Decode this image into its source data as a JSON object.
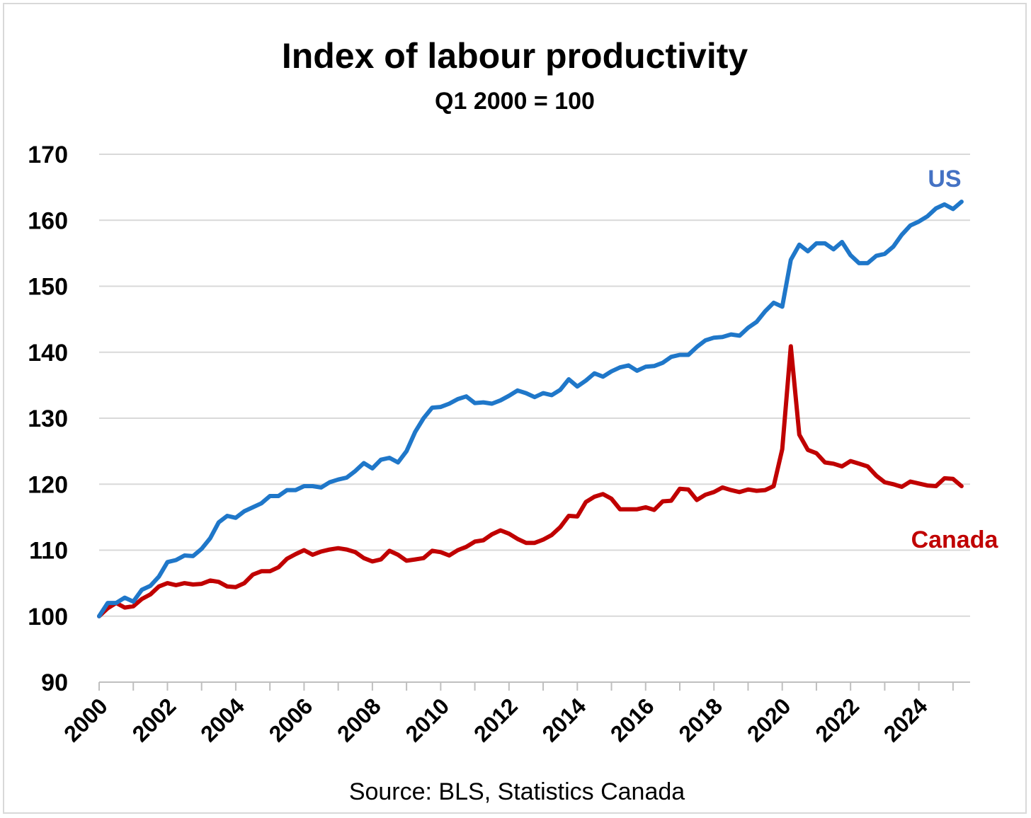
{
  "chart_data": {
    "type": "line",
    "title": "Index of labour productivity",
    "subtitle": "Q1 2000 = 100",
    "source": "Source: BLS, Statistics Canada",
    "xlabel": "",
    "ylabel": "",
    "ylim": [
      90,
      170
    ],
    "yticks": [
      90,
      100,
      110,
      120,
      130,
      140,
      150,
      160,
      170
    ],
    "xlim": [
      2000,
      2025.5
    ],
    "xticks": [
      "2000",
      "2002",
      "2004",
      "2006",
      "2008",
      "2010",
      "2012",
      "2014",
      "2016",
      "2018",
      "2020",
      "2022",
      "2024"
    ],
    "grid": true,
    "legend": "inline labels at right",
    "series": [
      {
        "name": "US",
        "color": "#1f77c9",
        "label_color": "#4472c4",
        "points": [
          [
            2000.0,
            100.0
          ],
          [
            2000.25,
            102.0
          ],
          [
            2000.5,
            102.0
          ],
          [
            2000.75,
            102.8
          ],
          [
            2001.0,
            102.2
          ],
          [
            2001.25,
            104.0
          ],
          [
            2001.5,
            104.6
          ],
          [
            2001.75,
            106.0
          ],
          [
            2002.0,
            108.2
          ],
          [
            2002.25,
            108.5
          ],
          [
            2002.5,
            109.2
          ],
          [
            2002.75,
            109.1
          ],
          [
            2003.0,
            110.2
          ],
          [
            2003.25,
            111.8
          ],
          [
            2003.5,
            114.2
          ],
          [
            2003.75,
            115.2
          ],
          [
            2004.0,
            114.9
          ],
          [
            2004.25,
            115.9
          ],
          [
            2004.5,
            116.5
          ],
          [
            2004.75,
            117.1
          ],
          [
            2005.0,
            118.2
          ],
          [
            2005.25,
            118.2
          ],
          [
            2005.5,
            119.1
          ],
          [
            2005.75,
            119.1
          ],
          [
            2006.0,
            119.7
          ],
          [
            2006.25,
            119.7
          ],
          [
            2006.5,
            119.5
          ],
          [
            2006.75,
            120.3
          ],
          [
            2007.0,
            120.7
          ],
          [
            2007.25,
            121.0
          ],
          [
            2007.5,
            122.0
          ],
          [
            2007.75,
            123.2
          ],
          [
            2008.0,
            122.4
          ],
          [
            2008.25,
            123.7
          ],
          [
            2008.5,
            124.0
          ],
          [
            2008.75,
            123.3
          ],
          [
            2009.0,
            125.0
          ],
          [
            2009.25,
            127.9
          ],
          [
            2009.5,
            130.0
          ],
          [
            2009.75,
            131.6
          ],
          [
            2010.0,
            131.7
          ],
          [
            2010.25,
            132.2
          ],
          [
            2010.5,
            132.9
          ],
          [
            2010.75,
            133.3
          ],
          [
            2011.0,
            132.3
          ],
          [
            2011.25,
            132.4
          ],
          [
            2011.5,
            132.2
          ],
          [
            2011.75,
            132.7
          ],
          [
            2012.0,
            133.4
          ],
          [
            2012.25,
            134.2
          ],
          [
            2012.5,
            133.8
          ],
          [
            2012.75,
            133.2
          ],
          [
            2013.0,
            133.8
          ],
          [
            2013.25,
            133.5
          ],
          [
            2013.5,
            134.3
          ],
          [
            2013.75,
            135.9
          ],
          [
            2014.0,
            134.8
          ],
          [
            2014.25,
            135.7
          ],
          [
            2014.5,
            136.8
          ],
          [
            2014.75,
            136.3
          ],
          [
            2015.0,
            137.1
          ],
          [
            2015.25,
            137.7
          ],
          [
            2015.5,
            138.0
          ],
          [
            2015.75,
            137.2
          ],
          [
            2016.0,
            137.8
          ],
          [
            2016.25,
            137.9
          ],
          [
            2016.5,
            138.4
          ],
          [
            2016.75,
            139.3
          ],
          [
            2017.0,
            139.6
          ],
          [
            2017.25,
            139.6
          ],
          [
            2017.5,
            140.8
          ],
          [
            2017.75,
            141.8
          ],
          [
            2018.0,
            142.2
          ],
          [
            2018.25,
            142.3
          ],
          [
            2018.5,
            142.7
          ],
          [
            2018.75,
            142.5
          ],
          [
            2019.0,
            143.7
          ],
          [
            2019.25,
            144.6
          ],
          [
            2019.5,
            146.2
          ],
          [
            2019.75,
            147.5
          ],
          [
            2020.0,
            146.9
          ],
          [
            2020.25,
            154.0
          ],
          [
            2020.5,
            156.3
          ],
          [
            2020.75,
            155.3
          ],
          [
            2021.0,
            156.5
          ],
          [
            2021.25,
            156.5
          ],
          [
            2021.5,
            155.6
          ],
          [
            2021.75,
            156.7
          ],
          [
            2022.0,
            154.7
          ],
          [
            2022.25,
            153.5
          ],
          [
            2022.5,
            153.5
          ],
          [
            2022.75,
            154.6
          ],
          [
            2023.0,
            154.9
          ],
          [
            2023.25,
            156.0
          ],
          [
            2023.5,
            157.8
          ],
          [
            2023.75,
            159.2
          ],
          [
            2024.0,
            159.8
          ],
          [
            2024.25,
            160.6
          ],
          [
            2024.5,
            161.8
          ],
          [
            2024.75,
            162.4
          ],
          [
            2025.0,
            161.7
          ],
          [
            2025.25,
            162.8
          ]
        ]
      },
      {
        "name": "Canada",
        "color": "#c00000",
        "label_color": "#c00000",
        "points": [
          [
            2000.0,
            100.0
          ],
          [
            2000.25,
            101.2
          ],
          [
            2000.5,
            102.0
          ],
          [
            2000.75,
            101.3
          ],
          [
            2001.0,
            101.5
          ],
          [
            2001.25,
            102.6
          ],
          [
            2001.5,
            103.3
          ],
          [
            2001.75,
            104.5
          ],
          [
            2002.0,
            105.0
          ],
          [
            2002.25,
            104.7
          ],
          [
            2002.5,
            105.0
          ],
          [
            2002.75,
            104.8
          ],
          [
            2003.0,
            104.9
          ],
          [
            2003.25,
            105.4
          ],
          [
            2003.5,
            105.2
          ],
          [
            2003.75,
            104.5
          ],
          [
            2004.0,
            104.4
          ],
          [
            2004.25,
            105.0
          ],
          [
            2004.5,
            106.3
          ],
          [
            2004.75,
            106.8
          ],
          [
            2005.0,
            106.8
          ],
          [
            2005.25,
            107.4
          ],
          [
            2005.5,
            108.7
          ],
          [
            2005.75,
            109.4
          ],
          [
            2006.0,
            110.0
          ],
          [
            2006.25,
            109.3
          ],
          [
            2006.5,
            109.8
          ],
          [
            2006.75,
            110.1
          ],
          [
            2007.0,
            110.3
          ],
          [
            2007.25,
            110.1
          ],
          [
            2007.5,
            109.7
          ],
          [
            2007.75,
            108.8
          ],
          [
            2008.0,
            108.3
          ],
          [
            2008.25,
            108.6
          ],
          [
            2008.5,
            109.9
          ],
          [
            2008.75,
            109.3
          ],
          [
            2009.0,
            108.4
          ],
          [
            2009.25,
            108.6
          ],
          [
            2009.5,
            108.8
          ],
          [
            2009.75,
            109.9
          ],
          [
            2010.0,
            109.7
          ],
          [
            2010.25,
            109.2
          ],
          [
            2010.5,
            110.0
          ],
          [
            2010.75,
            110.5
          ],
          [
            2011.0,
            111.3
          ],
          [
            2011.25,
            111.5
          ],
          [
            2011.5,
            112.4
          ],
          [
            2011.75,
            113.0
          ],
          [
            2012.0,
            112.5
          ],
          [
            2012.25,
            111.7
          ],
          [
            2012.5,
            111.1
          ],
          [
            2012.75,
            111.1
          ],
          [
            2013.0,
            111.6
          ],
          [
            2013.25,
            112.3
          ],
          [
            2013.5,
            113.5
          ],
          [
            2013.75,
            115.2
          ],
          [
            2014.0,
            115.1
          ],
          [
            2014.25,
            117.3
          ],
          [
            2014.5,
            118.1
          ],
          [
            2014.75,
            118.5
          ],
          [
            2015.0,
            117.8
          ],
          [
            2015.25,
            116.2
          ],
          [
            2015.5,
            116.2
          ],
          [
            2015.75,
            116.2
          ],
          [
            2016.0,
            116.5
          ],
          [
            2016.25,
            116.1
          ],
          [
            2016.5,
            117.4
          ],
          [
            2016.75,
            117.5
          ],
          [
            2017.0,
            119.3
          ],
          [
            2017.25,
            119.2
          ],
          [
            2017.5,
            117.6
          ],
          [
            2017.75,
            118.4
          ],
          [
            2018.0,
            118.8
          ],
          [
            2018.25,
            119.5
          ],
          [
            2018.5,
            119.1
          ],
          [
            2018.75,
            118.8
          ],
          [
            2019.0,
            119.2
          ],
          [
            2019.25,
            119.0
          ],
          [
            2019.5,
            119.1
          ],
          [
            2019.75,
            119.7
          ],
          [
            2020.0,
            125.3
          ],
          [
            2020.25,
            140.9
          ],
          [
            2020.5,
            127.5
          ],
          [
            2020.75,
            125.2
          ],
          [
            2021.0,
            124.7
          ],
          [
            2021.25,
            123.3
          ],
          [
            2021.5,
            123.1
          ],
          [
            2021.75,
            122.7
          ],
          [
            2022.0,
            123.5
          ],
          [
            2022.25,
            123.1
          ],
          [
            2022.5,
            122.7
          ],
          [
            2022.75,
            121.3
          ],
          [
            2023.0,
            120.3
          ],
          [
            2023.25,
            120.0
          ],
          [
            2023.5,
            119.6
          ],
          [
            2023.75,
            120.4
          ],
          [
            2024.0,
            120.1
          ],
          [
            2024.25,
            119.8
          ],
          [
            2024.5,
            119.7
          ],
          [
            2024.75,
            120.9
          ],
          [
            2025.0,
            120.8
          ],
          [
            2025.25,
            119.7
          ]
        ]
      }
    ]
  }
}
